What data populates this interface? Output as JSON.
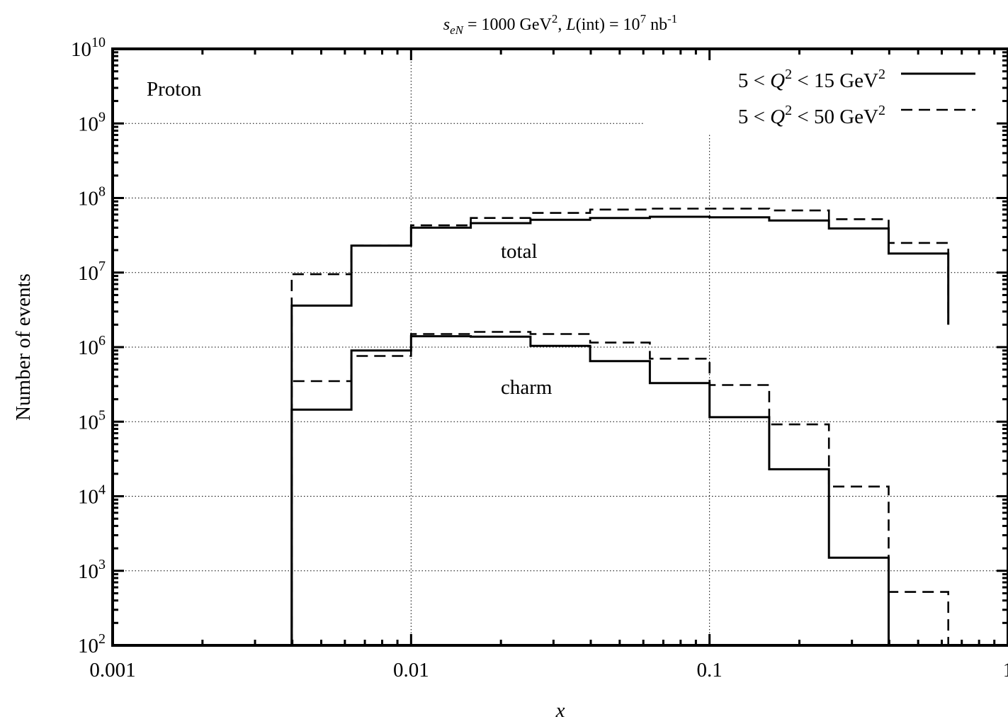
{
  "chart_data": {
    "type": "line",
    "title": {
      "s": "s",
      "s_sub": "eN",
      "mid": " = 1000 GeV",
      "mid_sup": "2",
      "sep": ", ",
      "L": "L",
      "rest": "(int) = 10",
      "rest_sup": "7",
      "tail": " nb",
      "tail_sup": "-1"
    },
    "xlabel": "x",
    "ylabel": "Number of events",
    "x_scale": "log",
    "y_scale": "log",
    "xlim": [
      0.001,
      1
    ],
    "ylim": [
      100,
      10000000000
    ],
    "grid": true,
    "x_ticks": [
      {
        "value": 0.001,
        "label": "0.001"
      },
      {
        "value": 0.01,
        "label": "0.01"
      },
      {
        "value": 0.1,
        "label": "0.1"
      },
      {
        "value": 1,
        "label": "1"
      }
    ],
    "y_ticks": [
      {
        "value": 100,
        "base": "10",
        "exp": "2"
      },
      {
        "value": 1000,
        "base": "10",
        "exp": "3"
      },
      {
        "value": 10000,
        "base": "10",
        "exp": "4"
      },
      {
        "value": 100000,
        "base": "10",
        "exp": "5"
      },
      {
        "value": 1000000,
        "base": "10",
        "exp": "6"
      },
      {
        "value": 10000000,
        "base": "10",
        "exp": "7"
      },
      {
        "value": 100000000,
        "base": "10",
        "exp": "8"
      },
      {
        "value": 1000000000,
        "base": "10",
        "exp": "9"
      },
      {
        "value": 10000000000,
        "base": "10",
        "exp": "10"
      }
    ],
    "bin_edges": [
      0.00398,
      0.00631,
      0.01,
      0.01585,
      0.02512,
      0.03981,
      0.0631,
      0.1,
      0.1585,
      0.2512,
      0.3981,
      0.631
    ],
    "legend": {
      "position": "top-right",
      "entries": [
        {
          "pre": "5 < ",
          "q": "Q",
          "sup": "2",
          "post": " < 15 GeV",
          "post_sup": "2",
          "style": "solid"
        },
        {
          "pre": "5 < ",
          "q": "Q",
          "sup": "2",
          "post": " < 50 GeV",
          "post_sup": "2",
          "style": "dashed"
        }
      ]
    },
    "annotations": {
      "panel": "Proton",
      "total": "total",
      "charm": "charm"
    },
    "series": [
      {
        "group": "total",
        "style": "solid",
        "values": [
          3600000,
          23000000,
          40000000,
          46000000,
          51000000,
          54000000,
          56000000,
          55000000,
          50000000,
          39000000,
          18000000
        ],
        "end_drop": 2000000
      },
      {
        "group": "total",
        "style": "dashed",
        "values": [
          9500000,
          23000000,
          43000000,
          54000000,
          63000000,
          70000000,
          72000000,
          72000000,
          68000000,
          52000000,
          25000000
        ],
        "end_drop": 2000000
      },
      {
        "group": "charm",
        "style": "solid",
        "values": [
          145000,
          900000,
          1400000,
          1380000,
          1040000,
          650000,
          330000,
          115000,
          23000,
          1500,
          100
        ],
        "end_drop": 100
      },
      {
        "group": "charm",
        "style": "dashed",
        "values": [
          350000,
          760000,
          1500000,
          1600000,
          1500000,
          1150000,
          700000,
          310000,
          92000,
          13500,
          520
        ],
        "end_drop": 100
      }
    ]
  }
}
